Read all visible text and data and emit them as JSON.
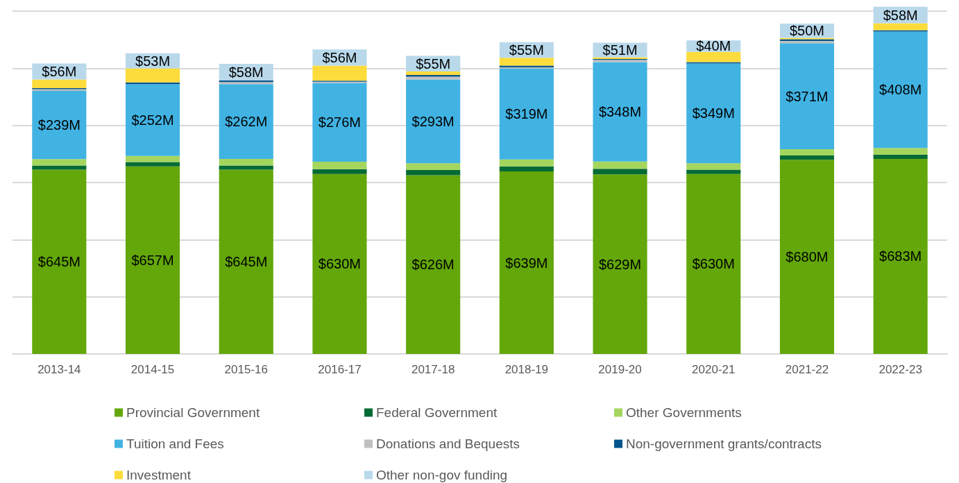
{
  "chart_data": {
    "type": "bar",
    "stacked": true,
    "categories": [
      "2013-14",
      "2014-15",
      "2015-16",
      "2016-17",
      "2017-18",
      "2018-19",
      "2019-20",
      "2020-21",
      "2021-22",
      "2022-23"
    ],
    "series": [
      {
        "name": "Provincial Government",
        "color": "#63a70a",
        "values": [
          645,
          657,
          645,
          630,
          626,
          639,
          629,
          630,
          680,
          683
        ],
        "value_labels": [
          "$645M",
          "$657M",
          "$645M",
          "$630M",
          "$626M",
          "$639M",
          "$629M",
          "$630M",
          "$680M",
          "$683M"
        ]
      },
      {
        "name": "Federal Government",
        "color": "#056b35",
        "values": [
          15,
          15,
          15,
          17,
          18,
          18,
          19,
          15,
          15,
          15
        ]
      },
      {
        "name": "Other Governments",
        "color": "#a4d65e",
        "values": [
          22,
          21,
          23,
          26,
          24,
          24,
          26,
          23,
          22,
          23
        ]
      },
      {
        "name": "Tuition and Fees",
        "color": "#41b3e3",
        "values": [
          239,
          252,
          262,
          276,
          293,
          319,
          348,
          349,
          371,
          408
        ],
        "value_labels": [
          "$239M",
          "$252M",
          "$262M",
          "$276M",
          "$293M",
          "$319M",
          "$348M",
          "$349M",
          "$371M",
          "$408M"
        ]
      },
      {
        "name": "Donations and Bequests",
        "color": "#bfbfbf",
        "values": [
          6,
          null,
          7,
          4,
          10,
          4,
          8,
          null,
          8,
          null
        ]
      },
      {
        "name": "Non-government grants/contracts",
        "color": "#03558c",
        "values": [
          4,
          6,
          6,
          4,
          6,
          6,
          3,
          5,
          6,
          5
        ]
      },
      {
        "name": "Investment",
        "color": "#fbdc3c",
        "values": [
          30,
          49,
          0,
          53,
          12,
          27,
          6,
          36,
          5,
          24
        ]
      },
      {
        "name": "Other non-gov funding",
        "color": "#b9d9eb",
        "values": [
          56,
          53,
          58,
          56,
          55,
          55,
          51,
          40,
          50,
          58
        ],
        "value_labels": [
          "$56M",
          "$53M",
          "$58M",
          "$56M",
          "$55M",
          "$55M",
          "$51M",
          "$40M",
          "$50M",
          "$58M"
        ]
      }
    ],
    "ylim": [
      0,
      1220
    ],
    "yticks": [
      {
        "value": 0,
        "label": null
      },
      {
        "value": 200,
        "label": null
      },
      {
        "value": 400,
        "label": null
      },
      {
        "value": 600,
        "label": null
      },
      {
        "value": 800,
        "label": null
      },
      {
        "value": 1000,
        "label": null
      },
      {
        "value": 1200,
        "label": null
      }
    ],
    "tick_labels": "x",
    "grid": "y",
    "legend": "bottom"
  }
}
